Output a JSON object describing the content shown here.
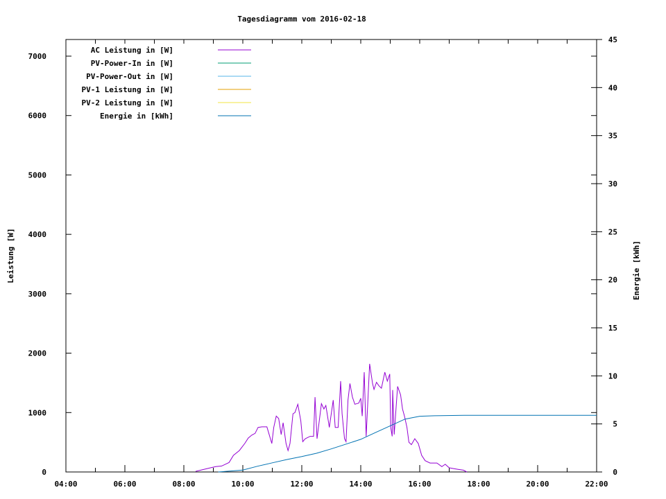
{
  "chart_data": {
    "type": "line",
    "title": "Tagesdiagramm vom 2016-02-18",
    "xlabel": "",
    "ylabel": "Leistung [W]",
    "y2label": "Energie [kWh]",
    "xlim": [
      "04:00",
      "22:00"
    ],
    "ylim": [
      0,
      7280
    ],
    "y2lim": [
      0,
      45
    ],
    "x_ticks": [
      "04:00",
      "06:00",
      "08:00",
      "10:00",
      "12:00",
      "14:00",
      "16:00",
      "18:00",
      "20:00",
      "22:00"
    ],
    "y_ticks": [
      "0",
      "1000",
      "2000",
      "3000",
      "4000",
      "5000",
      "6000",
      "7000"
    ],
    "y2_ticks": [
      "0",
      "5",
      "10",
      "15",
      "20",
      "25",
      "30",
      "35",
      "40",
      "45"
    ],
    "grid": false,
    "legend_position": "top-left",
    "series": [
      {
        "name": "AC Leistung in [W]",
        "axis": "y1",
        "color": "#9400d3",
        "points": [
          [
            "08:24",
            10
          ],
          [
            "08:54",
            70
          ],
          [
            "09:05",
            90
          ],
          [
            "09:17",
            100
          ],
          [
            "09:32",
            160
          ],
          [
            "09:41",
            280
          ],
          [
            "09:53",
            360
          ],
          [
            "10:04",
            480
          ],
          [
            "10:11",
            570
          ],
          [
            "10:18",
            620
          ],
          [
            "10:25",
            650
          ],
          [
            "10:31",
            750
          ],
          [
            "10:39",
            760
          ],
          [
            "10:49",
            760
          ],
          [
            "10:53",
            650
          ],
          [
            "10:59",
            480
          ],
          [
            "11:03",
            750
          ],
          [
            "11:08",
            940
          ],
          [
            "11:13",
            900
          ],
          [
            "11:18",
            630
          ],
          [
            "11:22",
            830
          ],
          [
            "11:28",
            480
          ],
          [
            "11:32",
            360
          ],
          [
            "11:36",
            480
          ],
          [
            "11:42",
            980
          ],
          [
            "11:46",
            1000
          ],
          [
            "11:52",
            1140
          ],
          [
            "11:58",
            860
          ],
          [
            "12:02",
            510
          ],
          [
            "12:07",
            560
          ],
          [
            "12:17",
            600
          ],
          [
            "12:24",
            600
          ],
          [
            "12:27",
            1260
          ],
          [
            "12:31",
            560
          ],
          [
            "12:40",
            1150
          ],
          [
            "12:45",
            1060
          ],
          [
            "12:49",
            1120
          ],
          [
            "12:56",
            750
          ],
          [
            "13:04",
            1210
          ],
          [
            "13:08",
            750
          ],
          [
            "13:14",
            750
          ],
          [
            "13:19",
            1530
          ],
          [
            "13:22",
            980
          ],
          [
            "13:27",
            560
          ],
          [
            "13:30",
            510
          ],
          [
            "13:34",
            1210
          ],
          [
            "13:38",
            1490
          ],
          [
            "13:43",
            1260
          ],
          [
            "13:48",
            1140
          ],
          [
            "13:56",
            1160
          ],
          [
            "14:00",
            1240
          ],
          [
            "14:03",
            940
          ],
          [
            "14:07",
            1680
          ],
          [
            "14:11",
            600
          ],
          [
            "14:18",
            1820
          ],
          [
            "14:24",
            1490
          ],
          [
            "14:27",
            1390
          ],
          [
            "14:32",
            1510
          ],
          [
            "14:37",
            1450
          ],
          [
            "14:42",
            1410
          ],
          [
            "14:49",
            1680
          ],
          [
            "14:54",
            1530
          ],
          [
            "14:59",
            1650
          ],
          [
            "15:01",
            750
          ],
          [
            "15:04",
            600
          ],
          [
            "15:05",
            1380
          ],
          [
            "15:08",
            630
          ],
          [
            "15:15",
            1440
          ],
          [
            "15:21",
            1300
          ],
          [
            "15:25",
            1060
          ],
          [
            "15:29",
            940
          ],
          [
            "15:34",
            750
          ],
          [
            "15:38",
            500
          ],
          [
            "15:43",
            460
          ],
          [
            "15:50",
            560
          ],
          [
            "15:57",
            480
          ],
          [
            "16:04",
            280
          ],
          [
            "16:11",
            190
          ],
          [
            "16:21",
            150
          ],
          [
            "16:35",
            150
          ],
          [
            "16:45",
            90
          ],
          [
            "16:52",
            130
          ],
          [
            "17:00",
            70
          ],
          [
            "17:17",
            45
          ],
          [
            "17:29",
            30
          ],
          [
            "17:36",
            0
          ]
        ]
      },
      {
        "name": "PV-Power-In in [W]",
        "axis": "y1",
        "color": "#009e73",
        "points": []
      },
      {
        "name": "PV-Power-Out in [W]",
        "axis": "y1",
        "color": "#56b4e9",
        "points": []
      },
      {
        "name": "PV-1 Leistung in [W]",
        "axis": "y1",
        "color": "#e69f00",
        "points": []
      },
      {
        "name": "PV-2 Leistung in [W]",
        "axis": "y1",
        "color": "#f0e442",
        "points": []
      },
      {
        "name": "Energie in [kWh]",
        "axis": "y2",
        "color": "#0072b2",
        "points": [
          [
            "09:10",
            0
          ],
          [
            "10:00",
            0.2
          ],
          [
            "10:30",
            0.6
          ],
          [
            "11:00",
            0.95
          ],
          [
            "11:30",
            1.3
          ],
          [
            "12:00",
            1.6
          ],
          [
            "12:30",
            1.95
          ],
          [
            "13:00",
            2.4
          ],
          [
            "13:30",
            2.9
          ],
          [
            "14:00",
            3.4
          ],
          [
            "14:30",
            4.1
          ],
          [
            "15:00",
            4.8
          ],
          [
            "15:30",
            5.5
          ],
          [
            "16:00",
            5.8
          ],
          [
            "16:30",
            5.85
          ],
          [
            "17:30",
            5.9
          ],
          [
            "22:00",
            5.9
          ]
        ]
      }
    ]
  }
}
